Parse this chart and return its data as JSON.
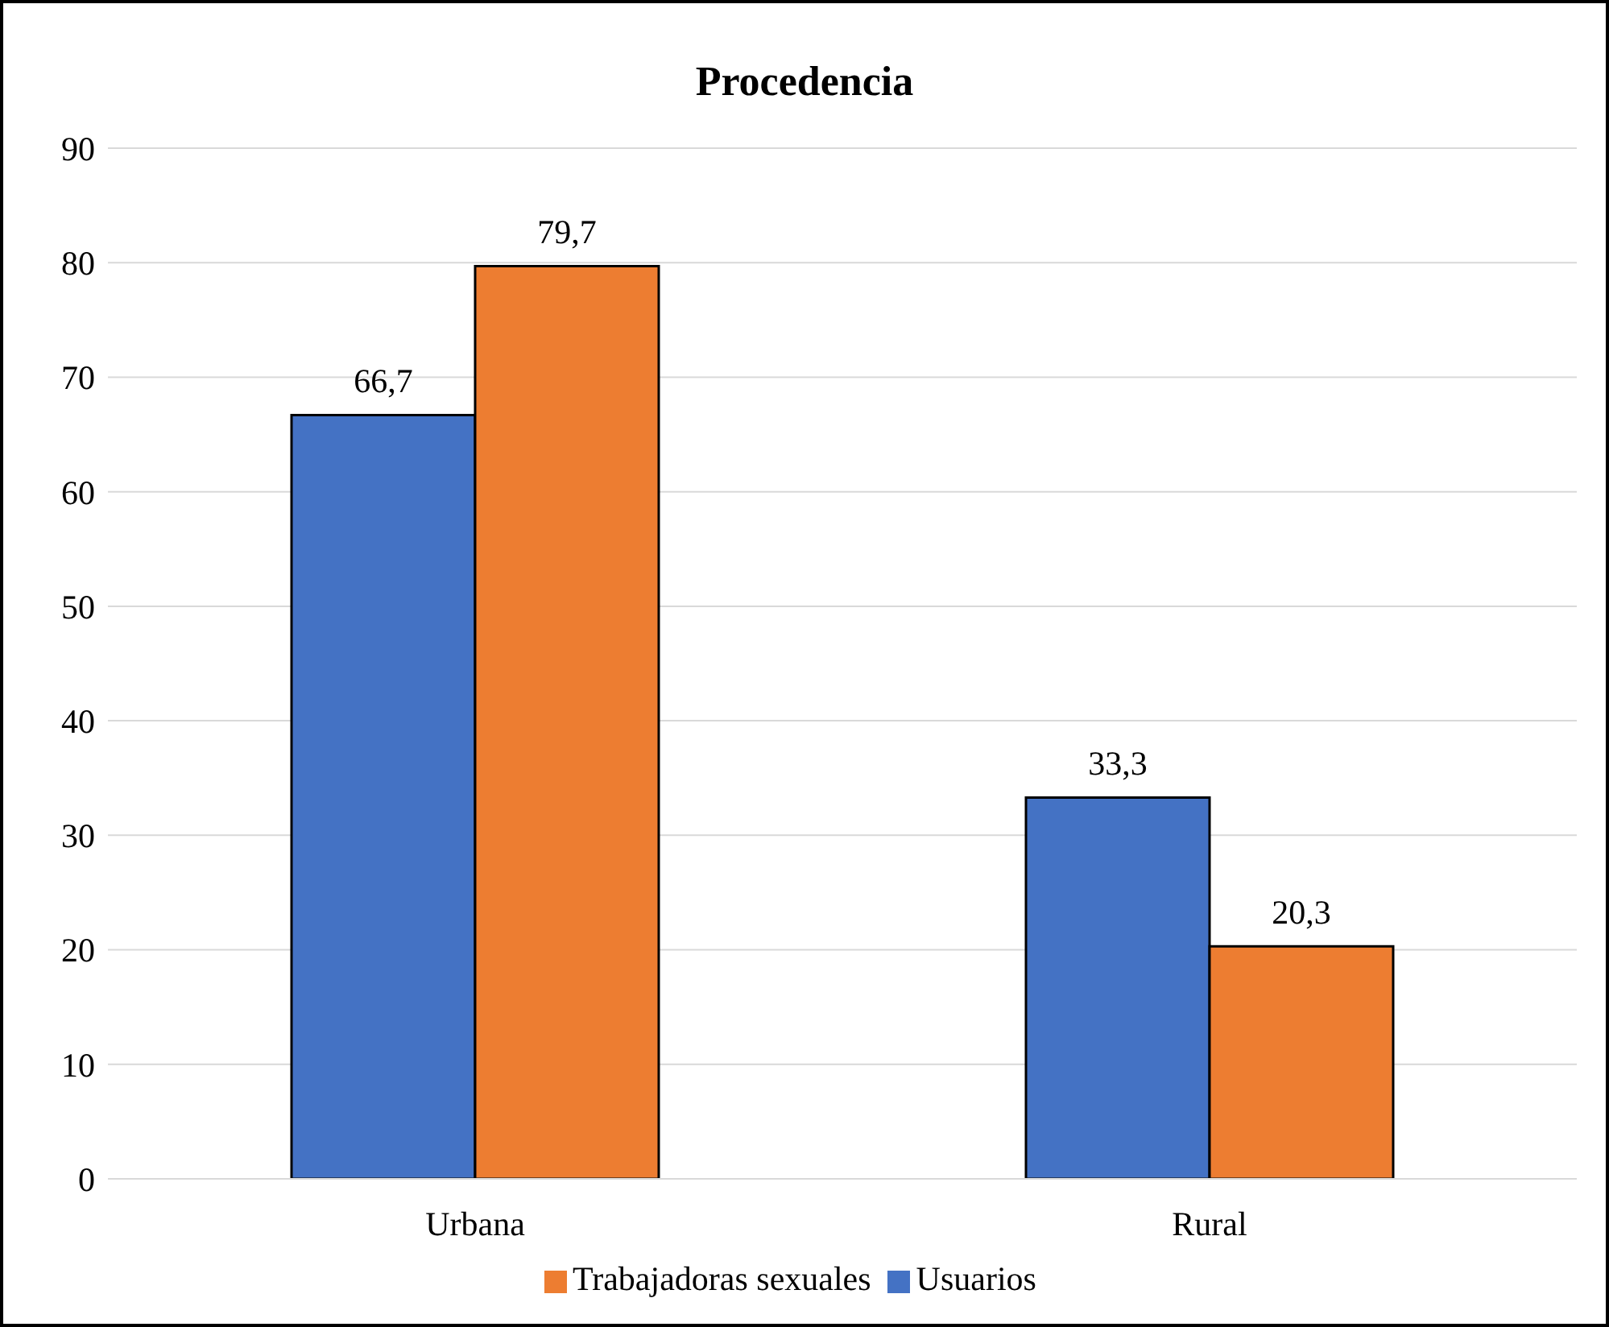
{
  "chart_data": {
    "type": "bar",
    "title": "Procedencia",
    "categories": [
      "Urbana",
      "Rural"
    ],
    "series": [
      {
        "name": "Usuarios",
        "color": "#4472c4",
        "values": [
          66.7,
          33.3
        ],
        "value_labels": [
          "66,7",
          "33,3"
        ]
      },
      {
        "name": "Trabajadoras sexuales",
        "color": "#ed7d31",
        "values": [
          79.7,
          20.3
        ],
        "value_labels": [
          "79,7",
          "20,3"
        ]
      }
    ],
    "ylim": [
      0,
      90
    ],
    "yticks": [
      0,
      10,
      20,
      30,
      40,
      50,
      60,
      70,
      80,
      90
    ],
    "grid": "y",
    "legend": "bottom"
  }
}
